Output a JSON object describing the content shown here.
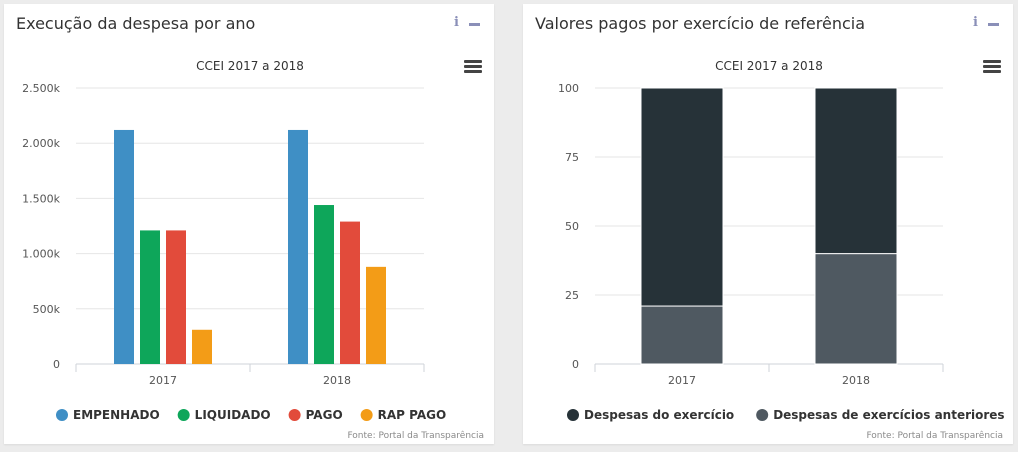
{
  "panels": [
    {
      "title": "Execução da despesa por ano",
      "source": "Fonte: Portal da Transparência"
    },
    {
      "title": "Valores pagos por exercício de referência",
      "source": "Fonte: Portal da Transparência"
    }
  ],
  "chart_data": [
    {
      "type": "bar",
      "title": "CCEI 2017 a 2018",
      "xlabel": "",
      "ylabel": "",
      "categories": [
        "2017",
        "2018"
      ],
      "ylim": [
        0,
        2500
      ],
      "yticks": [
        0,
        500,
        1000,
        1500,
        2000,
        2500
      ],
      "ytick_labels": [
        "0",
        "500k",
        "1.000k",
        "1.500k",
        "2.000k",
        "2.500k"
      ],
      "grid": true,
      "legend_position": "bottom",
      "series": [
        {
          "name": "EMPENHADO",
          "color": "#3f8fc5",
          "values": [
            2120,
            2120
          ]
        },
        {
          "name": "LIQUIDADO",
          "color": "#0ea65a",
          "values": [
            1210,
            1440
          ]
        },
        {
          "name": "PAGO",
          "color": "#e24b3b",
          "values": [
            1210,
            1290
          ]
        },
        {
          "name": "RAP PAGO",
          "color": "#f39c17",
          "values": [
            310,
            880
          ]
        }
      ]
    },
    {
      "type": "bar",
      "stacked": true,
      "title": "CCEI 2017 a 2018",
      "xlabel": "",
      "ylabel": "",
      "categories": [
        "2017",
        "2018"
      ],
      "ylim": [
        0,
        100
      ],
      "yticks": [
        0,
        25,
        50,
        75,
        100
      ],
      "ytick_labels": [
        "0",
        "25",
        "50",
        "75",
        "100"
      ],
      "grid": true,
      "legend_position": "bottom",
      "series": [
        {
          "name": "Despesas do exercício",
          "color": "#263238",
          "values": [
            79,
            60
          ]
        },
        {
          "name": "Despesas de exercícios anteriores",
          "color": "#4f5961",
          "values": [
            21,
            40
          ]
        }
      ]
    }
  ]
}
